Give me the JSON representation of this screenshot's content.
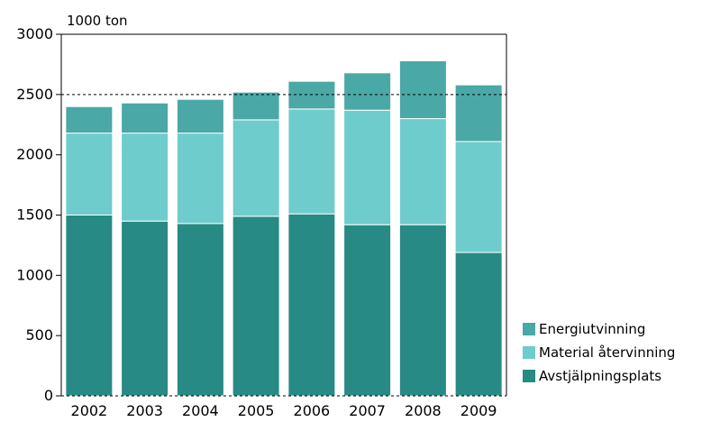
{
  "chart_data": {
    "type": "bar",
    "stacked": true,
    "unit_label": "1000 ton",
    "categories": [
      "2002",
      "2003",
      "2004",
      "2005",
      "2006",
      "2007",
      "2008",
      "2009"
    ],
    "series": [
      {
        "name": "Avstjälpningsplats",
        "color": "#278a84",
        "values": [
          1500,
          1450,
          1430,
          1490,
          1510,
          1420,
          1420,
          1190
        ]
      },
      {
        "name": "Material återvinning",
        "color": "#6ecccc",
        "values": [
          680,
          730,
          750,
          800,
          870,
          950,
          880,
          920
        ]
      },
      {
        "name": "Energiutvinning",
        "color": "#4aa8a6",
        "values": [
          220,
          250,
          280,
          230,
          230,
          310,
          480,
          470
        ]
      }
    ],
    "ylim": [
      0,
      3000
    ],
    "yticks": [
      "0",
      "500",
      "1000",
      "1500",
      "2000",
      "2500",
      "3000"
    ],
    "reference_line": 2500,
    "legend_position": "right"
  }
}
